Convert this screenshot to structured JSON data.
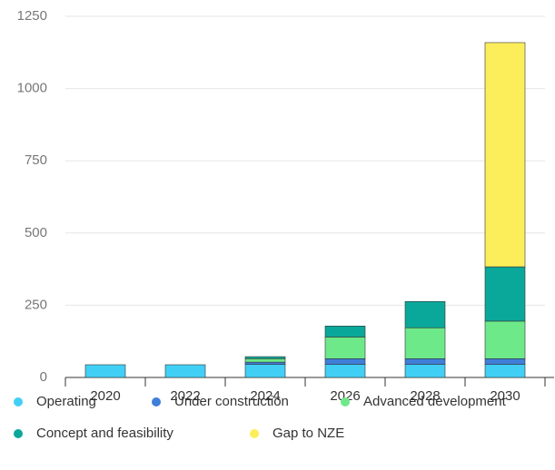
{
  "chart_data": {
    "type": "stacked_bar",
    "categories": [
      "2020",
      "2022",
      "2024",
      "2026",
      "2028",
      "2030"
    ],
    "series": [
      {
        "name": "Operating",
        "color": "#41cff5",
        "values": [
          44,
          44,
          45,
          45,
          45,
          45
        ]
      },
      {
        "name": "Under construction",
        "color": "#3f7fd8",
        "values": [
          0,
          0,
          8,
          20,
          20,
          20
        ]
      },
      {
        "name": "Advanced development",
        "color": "#6ee98a",
        "values": [
          0,
          0,
          12,
          75,
          107,
          130
        ]
      },
      {
        "name": "Concept and feasibility",
        "color": "#0aa89a",
        "values": [
          0,
          0,
          7,
          38,
          91,
          188
        ]
      },
      {
        "name": "Gap to NZE",
        "color": "#fcee5a",
        "values": [
          0,
          0,
          0,
          0,
          0,
          776
        ]
      }
    ],
    "ylim": [
      0,
      1250
    ],
    "yticks": [
      0,
      250,
      500,
      750,
      1000,
      1250
    ],
    "grid": true
  }
}
